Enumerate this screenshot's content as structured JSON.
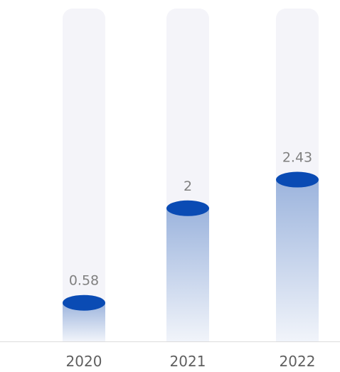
{
  "chart_data": {
    "type": "bar",
    "categories": [
      "2020",
      "2021",
      "2022"
    ],
    "values": [
      0.58,
      2,
      2.43
    ],
    "value_labels": [
      "0.58",
      "2",
      "2.43"
    ],
    "title": "",
    "xlabel": "",
    "ylabel": "",
    "ylim": [
      0,
      5
    ],
    "grid": false,
    "legend": "none",
    "colors": {
      "track": "#F4F4F9",
      "bar_top": "#9CB4DD",
      "bar_bottom": "#F1F4FA",
      "cap": "#0A4BB4",
      "value_text": "#808080",
      "tick_text": "#5F5F5F",
      "axis_line": "#DCDCDC"
    }
  }
}
